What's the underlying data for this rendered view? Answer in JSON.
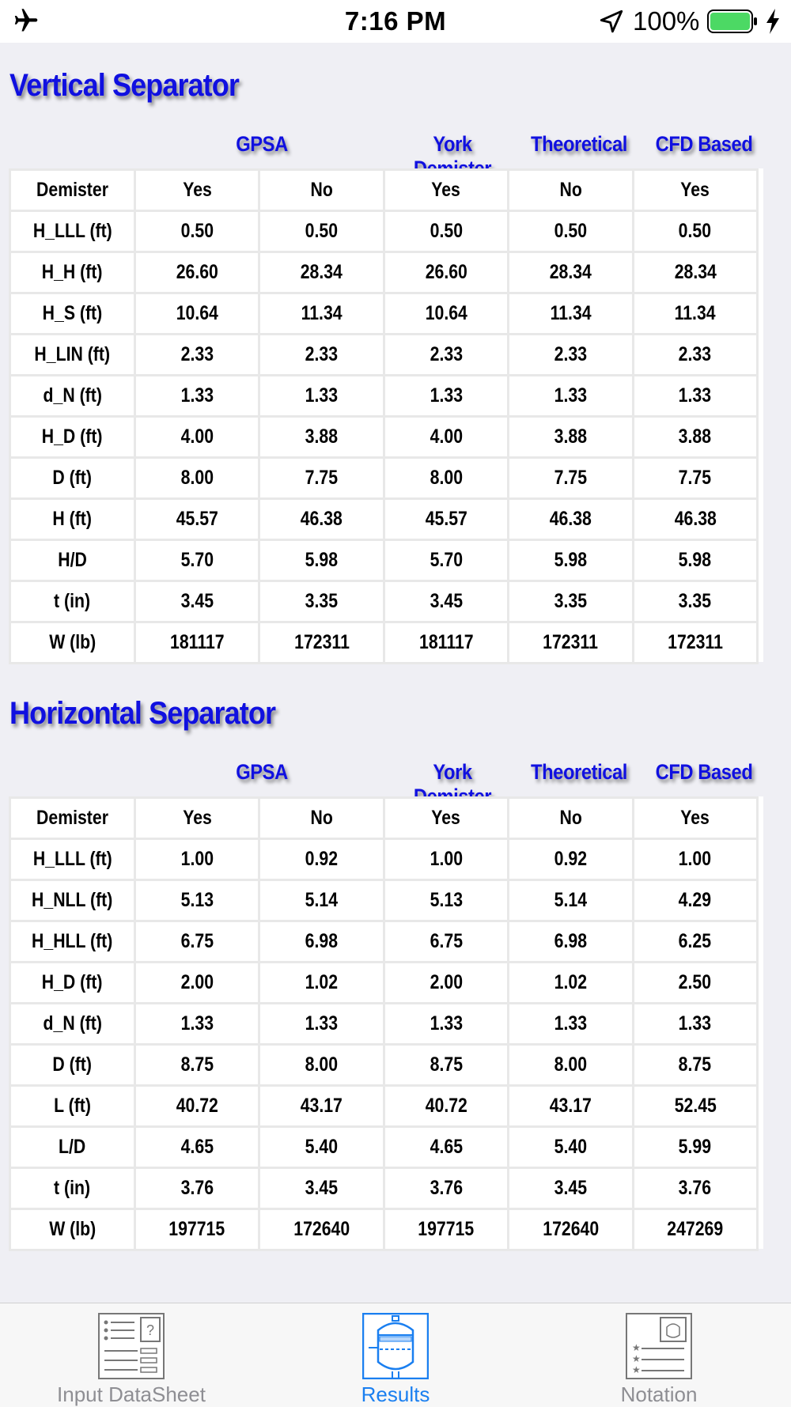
{
  "status_bar": {
    "time": "7:16 PM",
    "battery_percent": "100%",
    "battery_level": 1.0,
    "icons": [
      "airplane-icon",
      "location-arrow-icon",
      "battery-icon",
      "charging-bolt-icon"
    ]
  },
  "colors": {
    "title_blue": "#1010e0",
    "tab_active": "#1a7ff0",
    "tab_inactive": "#8e8e93",
    "battery_green": "#4cd964"
  },
  "vertical": {
    "title": "Vertical Separator",
    "groups": [
      "GPSA",
      "York Demister",
      "Theoretical",
      "CFD Based"
    ],
    "rows": [
      [
        "Demister",
        "Yes",
        "No",
        "Yes",
        "No",
        "Yes"
      ],
      [
        "H_LLL (ft)",
        "0.50",
        "0.50",
        "0.50",
        "0.50",
        "0.50"
      ],
      [
        "H_H (ft)",
        "26.60",
        "28.34",
        "26.60",
        "28.34",
        "28.34"
      ],
      [
        "H_S (ft)",
        "10.64",
        "11.34",
        "10.64",
        "11.34",
        "11.34"
      ],
      [
        "H_LIN (ft)",
        "2.33",
        "2.33",
        "2.33",
        "2.33",
        "2.33"
      ],
      [
        "d_N (ft)",
        "1.33",
        "1.33",
        "1.33",
        "1.33",
        "1.33"
      ],
      [
        "H_D (ft)",
        "4.00",
        "3.88",
        "4.00",
        "3.88",
        "3.88"
      ],
      [
        "D (ft)",
        "8.00",
        "7.75",
        "8.00",
        "7.75",
        "7.75"
      ],
      [
        "H (ft)",
        "45.57",
        "46.38",
        "45.57",
        "46.38",
        "46.38"
      ],
      [
        "H/D",
        "5.70",
        "5.98",
        "5.70",
        "5.98",
        "5.98"
      ],
      [
        "t (in)",
        "3.45",
        "3.35",
        "3.45",
        "3.35",
        "3.35"
      ],
      [
        "W (lb)",
        "181117",
        "172311",
        "181117",
        "172311",
        "172311"
      ]
    ]
  },
  "horizontal": {
    "title": "Horizontal Separator",
    "groups": [
      "GPSA",
      "York Demister",
      "Theoretical",
      "CFD Based"
    ],
    "rows": [
      [
        "Demister",
        "Yes",
        "No",
        "Yes",
        "No",
        "Yes"
      ],
      [
        "H_LLL (ft)",
        "1.00",
        "0.92",
        "1.00",
        "0.92",
        "1.00"
      ],
      [
        "H_NLL (ft)",
        "5.13",
        "5.14",
        "5.13",
        "5.14",
        "4.29"
      ],
      [
        "H_HLL (ft)",
        "6.75",
        "6.98",
        "6.75",
        "6.98",
        "6.25"
      ],
      [
        "H_D (ft)",
        "2.00",
        "1.02",
        "2.00",
        "1.02",
        "2.50"
      ],
      [
        "d_N (ft)",
        "1.33",
        "1.33",
        "1.33",
        "1.33",
        "1.33"
      ],
      [
        "D (ft)",
        "8.75",
        "8.00",
        "8.75",
        "8.00",
        "8.75"
      ],
      [
        "L (ft)",
        "40.72",
        "43.17",
        "40.72",
        "43.17",
        "52.45"
      ],
      [
        "L/D",
        "4.65",
        "5.40",
        "4.65",
        "5.40",
        "5.99"
      ],
      [
        "t (in)",
        "3.76",
        "3.45",
        "3.76",
        "3.45",
        "3.76"
      ],
      [
        "W (lb)",
        "197715",
        "172640",
        "197715",
        "172640",
        "247269"
      ]
    ]
  },
  "tabs": [
    {
      "label": "Input DataSheet",
      "icon": "datasheet-icon",
      "active": false
    },
    {
      "label": "Results",
      "icon": "separator-vessel-icon",
      "active": true
    },
    {
      "label": "Notation",
      "icon": "notation-list-icon",
      "active": false
    }
  ]
}
